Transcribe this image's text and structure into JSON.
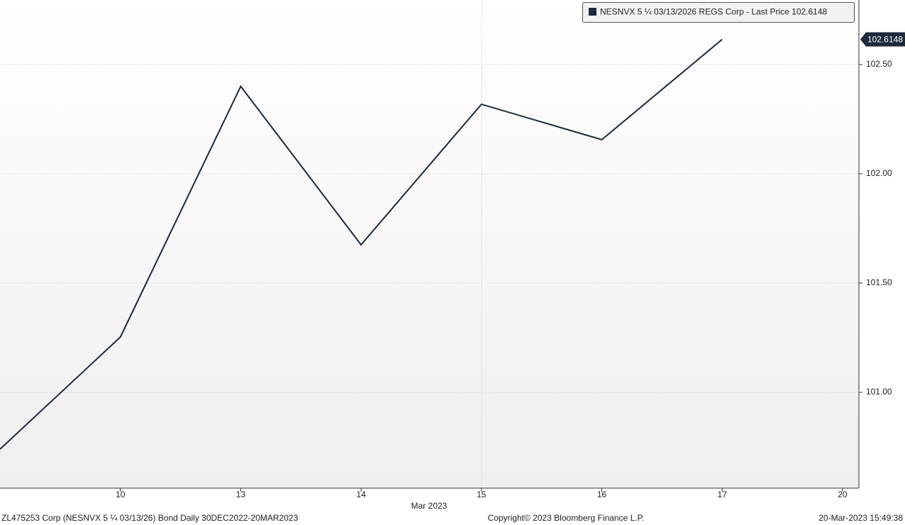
{
  "chart_data": {
    "type": "line",
    "x_label": "Mar 2023",
    "categories": [
      null,
      "10",
      "13",
      "14",
      "15",
      "16",
      "17",
      "20"
    ],
    "series": [
      {
        "name": "NESNVX 5 ¼ 03/13/2026 REGS Corp - Last Price",
        "color": "#1b2a3c",
        "values": [
          100.74,
          101.253,
          102.4,
          101.675,
          102.318,
          102.156,
          102.6148,
          null
        ]
      }
    ],
    "ylim": [
      100.562,
      102.795
    ],
    "yticks": [
      {
        "value": 101,
        "label": "101.00"
      },
      {
        "value": 101.5,
        "label": "101.50"
      },
      {
        "value": 102,
        "label": "102.00"
      },
      {
        "value": 102.5,
        "label": "102.50"
      }
    ],
    "grid": true
  },
  "footer": {
    "left": "ZL475253 Corp (NESNVX 5 ¼ 03/13/26) Bond  Daily 30DEC2022-20MAR2023",
    "center": "Copyright© 2023 Bloomberg Finance L.P.",
    "right": "20-Mar-2023 15:49:38"
  }
}
